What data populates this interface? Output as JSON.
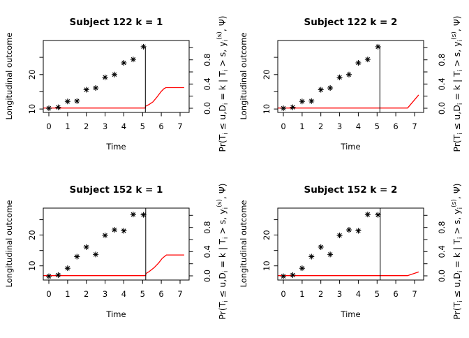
{
  "figure": {
    "background": "#ffffff",
    "foreground": "#000000",
    "curve_color": "#ff0000"
  },
  "shared": {
    "xlabel": "Time",
    "ylabel_left": "Longitudinal outcome",
    "ylabel_right_segments": [
      [
        "Pr(T",
        "n"
      ],
      [
        "i",
        "sub"
      ],
      [
        " ≤ u,D",
        "n"
      ],
      [
        "i",
        "sub"
      ],
      [
        " = k | T",
        "n"
      ],
      [
        "i",
        "sub"
      ],
      [
        " > s, y",
        "n"
      ],
      [
        "i",
        "sub"
      ],
      [
        "(s)",
        "sup"
      ],
      [
        ", Ψ)",
        "n"
      ]
    ],
    "x_ticks": [
      0,
      1,
      2,
      3,
      4,
      5,
      6,
      7
    ],
    "x_tick_labels": [
      "0",
      "1",
      "2",
      "3",
      "4",
      "5",
      "6",
      "7"
    ],
    "left_ticks": [
      10,
      15,
      20,
      25
    ],
    "left_labeled_ticks": [
      [
        10,
        "10"
      ],
      [
        20,
        "20"
      ]
    ],
    "right_ticks": [
      0,
      0.2,
      0.4,
      0.6,
      0.8,
      1.0
    ],
    "right_labeled_ticks": [
      [
        0.0,
        "0.0"
      ],
      [
        0.4,
        "0.4"
      ],
      [
        0.8,
        "0.8"
      ]
    ],
    "xlim": [
      -0.298,
      7.485
    ],
    "ylim_right": [
      -0.069,
      1.119
    ]
  },
  "chart_data": [
    {
      "type": "scatter",
      "title": "Subject 122 k = 1",
      "ylim_left": [
        9.0,
        29.9
      ],
      "scatter_x": [
        0,
        0.5,
        1,
        1.5,
        2,
        2.5,
        3,
        3.5,
        4,
        4.5,
        5.05
      ],
      "scatter_y": [
        10.2,
        10.5,
        12.2,
        12.3,
        15.6,
        16.1,
        19.2,
        20.0,
        23.4,
        24.4,
        28.1
      ],
      "vline_x": 5.15,
      "vline_y_max": 28.1,
      "prob_curve": [
        [
          -0.298,
          0.004
        ],
        [
          5.15,
          0.004
        ],
        [
          5.16,
          0.035
        ],
        [
          5.32,
          0.058
        ],
        [
          5.55,
          0.104
        ],
        [
          5.77,
          0.185
        ],
        [
          5.99,
          0.277
        ],
        [
          6.14,
          0.323
        ],
        [
          6.24,
          0.34
        ],
        [
          7.22,
          0.34
        ]
      ]
    },
    {
      "type": "scatter",
      "title": "Subject 122 k = 2",
      "ylim_left": [
        9.0,
        29.9
      ],
      "scatter_x": [
        0,
        0.5,
        1,
        1.5,
        2,
        2.5,
        3,
        3.5,
        4,
        4.5,
        5.05
      ],
      "scatter_y": [
        10.2,
        10.5,
        12.2,
        12.3,
        15.6,
        16.1,
        19.2,
        20.0,
        23.4,
        24.4,
        28.1
      ],
      "vline_x": 5.15,
      "vline_y_max": 28.1,
      "prob_curve": [
        [
          -0.298,
          0.004
        ],
        [
          6.63,
          0.004
        ],
        [
          7.22,
          0.22
        ]
      ]
    },
    {
      "type": "scatter",
      "title": "Subject 152 k = 1",
      "ylim_left": [
        5.38,
        28.78
      ],
      "scatter_x": [
        0,
        0.5,
        1,
        1.5,
        2,
        2.5,
        3,
        3.5,
        4,
        4.5,
        5.05
      ],
      "scatter_y": [
        6.6,
        7.0,
        9.2,
        13.0,
        16.1,
        13.7,
        19.9,
        21.7,
        21.4,
        26.7,
        26.6
      ],
      "vline_x": 5.17,
      "vline_y_max": null,
      "prob_curve": [
        [
          -0.298,
          0.004
        ],
        [
          5.17,
          0.004
        ],
        [
          5.18,
          0.038
        ],
        [
          5.35,
          0.07
        ],
        [
          5.6,
          0.13
        ],
        [
          5.85,
          0.21
        ],
        [
          6.05,
          0.29
        ],
        [
          6.27,
          0.345
        ],
        [
          7.22,
          0.345
        ]
      ]
    },
    {
      "type": "scatter",
      "title": "Subject 152 k = 2",
      "ylim_left": [
        5.38,
        28.78
      ],
      "scatter_x": [
        0,
        0.5,
        1,
        1.5,
        2,
        2.5,
        3,
        3.5,
        4,
        4.5,
        5.05
      ],
      "scatter_y": [
        6.6,
        7.0,
        9.2,
        13.0,
        16.1,
        13.7,
        19.9,
        21.7,
        21.4,
        26.7,
        26.6
      ],
      "vline_x": 5.17,
      "vline_y_max": null,
      "prob_curve": [
        [
          -0.298,
          0.004
        ],
        [
          6.63,
          0.004
        ],
        [
          7.22,
          0.065
        ]
      ]
    }
  ]
}
